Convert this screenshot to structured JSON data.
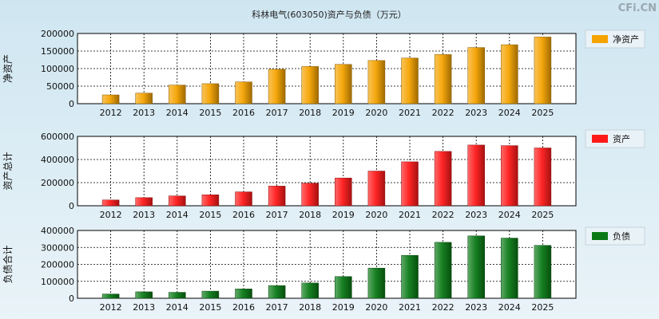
{
  "title": "科林电气(603050)资产与负债（万元）",
  "brand": "CFi.CN",
  "chart_data": [
    {
      "type": "bar",
      "ylabel": "净资产",
      "legend": "净资产",
      "color": "#f5a300",
      "categories": [
        "2012",
        "2013",
        "2014",
        "2015",
        "2016",
        "2017",
        "2018",
        "2019",
        "2020",
        "2021",
        "2022",
        "2023",
        "2024",
        "2025"
      ],
      "values": [
        25000,
        30000,
        53000,
        57000,
        62000,
        98000,
        106000,
        112000,
        123000,
        130000,
        140000,
        160000,
        168000,
        190000
      ],
      "ylim": [
        0,
        200000
      ],
      "yticks": [
        0,
        50000,
        100000,
        150000,
        200000
      ],
      "legend_position": "right"
    },
    {
      "type": "bar",
      "ylabel": "资产总计",
      "legend": "资产",
      "color": "#ff1a1a",
      "categories": [
        "2012",
        "2013",
        "2014",
        "2015",
        "2016",
        "2017",
        "2018",
        "2019",
        "2020",
        "2021",
        "2022",
        "2023",
        "2024",
        "2025"
      ],
      "values": [
        50000,
        70000,
        85000,
        95000,
        120000,
        170000,
        195000,
        240000,
        300000,
        380000,
        470000,
        525000,
        520000,
        500000
      ],
      "ylim": [
        0,
        600000
      ],
      "yticks": [
        0,
        200000,
        400000,
        600000
      ],
      "legend_position": "right"
    },
    {
      "type": "bar",
      "ylabel": "负债合计",
      "legend": "负债",
      "color": "#0b7a16",
      "categories": [
        "2012",
        "2013",
        "2014",
        "2015",
        "2016",
        "2017",
        "2018",
        "2019",
        "2020",
        "2021",
        "2022",
        "2023",
        "2024",
        "2025"
      ],
      "values": [
        25000,
        38000,
        35000,
        42000,
        55000,
        75000,
        90000,
        128000,
        178000,
        253000,
        330000,
        368000,
        355000,
        312000
      ],
      "ylim": [
        0,
        400000
      ],
      "yticks": [
        0,
        100000,
        200000,
        300000,
        400000
      ],
      "legend_position": "right"
    }
  ]
}
